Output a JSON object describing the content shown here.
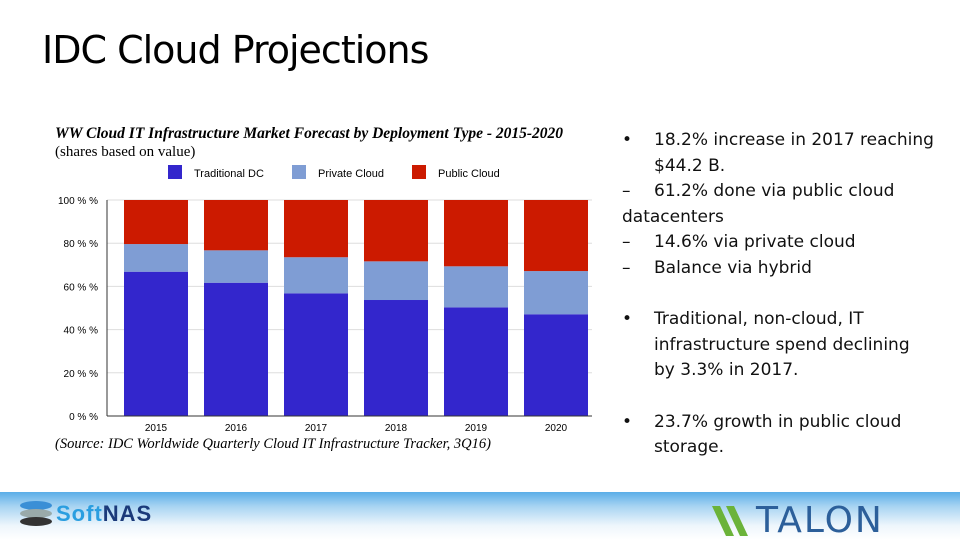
{
  "slide_title": "IDC Cloud Projections",
  "chart_data": {
    "type": "bar",
    "stacked": true,
    "title": "WW Cloud IT Infrastructure Market Forecast by Deployment Type - 2015-2020",
    "subtitle": "(shares based on value)",
    "source": "(Source: IDC Worldwide Quarterly Cloud IT Infrastructure Tracker, 3Q16)",
    "categories": [
      "2015",
      "2016",
      "2017",
      "2018",
      "2019",
      "2020"
    ],
    "series": [
      {
        "name": "Traditional DC",
        "color": "#3326cc",
        "values": [
          66.8,
          61.7,
          56.8,
          53.7,
          50.3,
          47.1
        ]
      },
      {
        "name": "Private Cloud",
        "color": "#7f9dd4",
        "values": [
          12.8,
          15.0,
          16.7,
          17.9,
          19.0,
          20.0
        ]
      },
      {
        "name": "Public Cloud",
        "color": "#cc1a00",
        "values": [
          20.4,
          23.3,
          26.5,
          28.4,
          30.7,
          32.9
        ]
      }
    ],
    "yticks": [
      "0 % %",
      "20 % %",
      "40 % %",
      "60 % %",
      "80 % %",
      "100 % %"
    ],
    "ylim": [
      0,
      100
    ],
    "legend": "top",
    "grid": true
  },
  "bullets": [
    {
      "marker": "•",
      "text": "18.2% increase  in 2017 reaching"
    },
    {
      "marker": "",
      "text": "$44.2 B."
    },
    {
      "marker": "–",
      "text": "61.2% done via public cloud"
    },
    {
      "marker": "",
      "text": "datacenters",
      "flat": true
    },
    {
      "marker": "–",
      "text": "14.6% via private cloud"
    },
    {
      "marker": "–",
      "text": "Balance via hybrid"
    },
    null,
    {
      "marker": "•",
      "text": "Traditional, non-cloud, IT"
    },
    {
      "marker": "",
      "text": "infrastructure spend declining"
    },
    {
      "marker": "",
      "text": "by 3.3% in 2017."
    },
    null,
    {
      "marker": "•",
      "text": "23.7% growth in public cloud"
    },
    {
      "marker": "",
      "text": "storage."
    }
  ],
  "footer": {
    "left_logo": "SoftNAS",
    "right_logo": "TALON"
  }
}
